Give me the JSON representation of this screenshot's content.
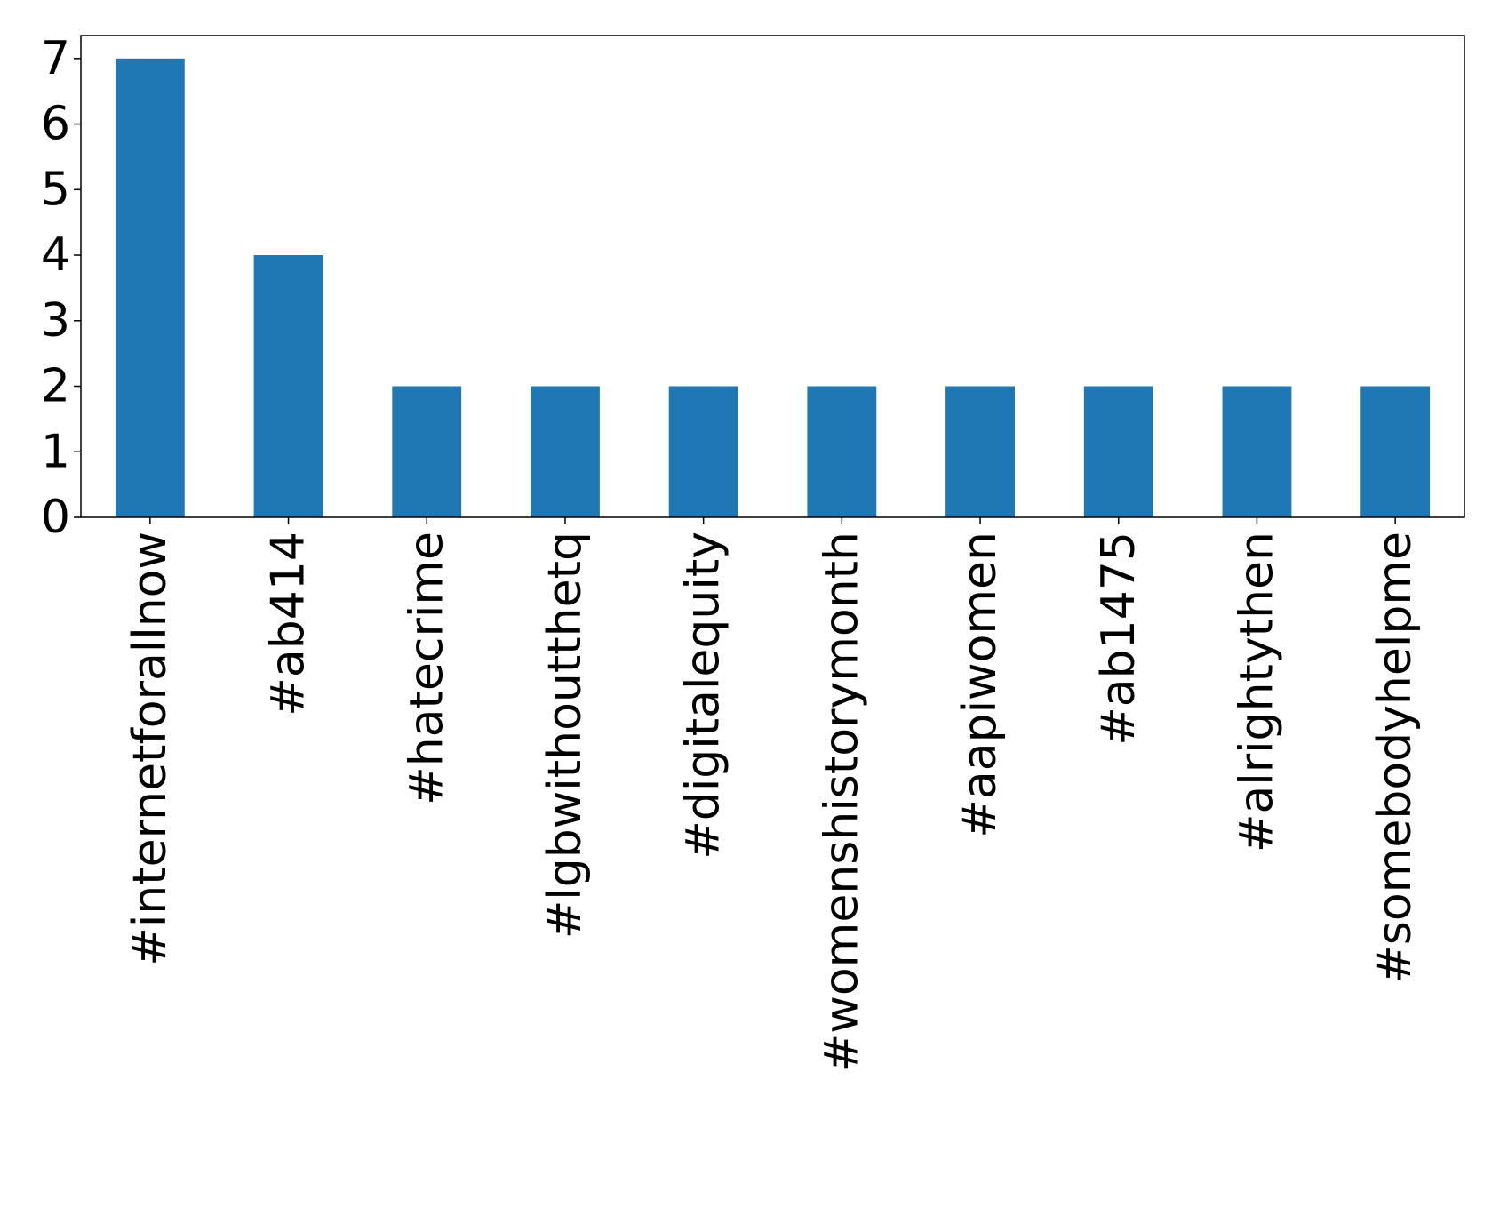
{
  "chart_data": {
    "type": "bar",
    "categories": [
      "#internetforallnow",
      "#ab414",
      "#hatecrime",
      "#lgbwithoutthetq",
      "#digitalequity",
      "#womenshistorymonth",
      "#aapiwomen",
      "#ab1475",
      "#alrightythen",
      "#somebodyhelpme"
    ],
    "values": [
      7,
      4,
      2,
      2,
      2,
      2,
      2,
      2,
      2,
      2
    ],
    "color": "#1f77b4",
    "ylim": [
      0,
      7.35
    ],
    "yticks": [
      0,
      1,
      2,
      3,
      4,
      5,
      6,
      7
    ],
    "grid": false
  }
}
